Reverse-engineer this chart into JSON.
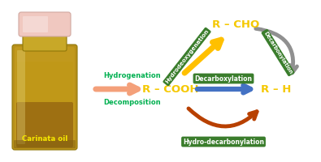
{
  "bg_color": "#ffffff",
  "carinata_label": "Carinata oil",
  "carinata_label_color": "#f5e800",
  "hydrogenation_label": "Hydrogenation",
  "hydrogenation_color": "#00b050",
  "decomposition_label": "Decomposition",
  "decomposition_color": "#00b050",
  "rcooh_label": "R – COOH",
  "rcooh_color": "#f5c800",
  "rcho_label": "R – CHO",
  "rcho_color": "#f5c800",
  "rh_label": "R – H",
  "rh_color": "#f5c800",
  "hydrodeoxygenation_label": "Hydrodeoxygenation",
  "hydrodeoxygenation_color": "#ffffff",
  "hydrodeoxygenation_bg": "#3a7d2c",
  "decarboxylation_label": "Decarboxylation",
  "decarboxylation_color": "#ffffff",
  "decarboxylation_bg": "#3a7d2c",
  "hydrodecarbonylation_label": "Hydro-decarbonylation",
  "hydrodecarbonylation_color": "#ffffff",
  "hydrodecarbonylation_bg": "#3a7d2c",
  "decarbonylation_label": "Decarbonylation",
  "decarbonylation_color": "#ffffff",
  "decarbonylation_bg": "#3a7d2c",
  "salmon_arrow_color": "#f4a07a",
  "blue_arrow_color": "#4472c4",
  "orange_arrow_color": "#b84000",
  "gold_arrow_color": "#ffc000",
  "gray_arrow_color": "#909090",
  "bottle_body_color": "#c8a030",
  "bottle_body_color2": "#b07020",
  "bottle_glass_color": "#d4c060",
  "bottle_cap_color": "#f0ddd0",
  "bottle_highlight_color": "#e8e0a0"
}
